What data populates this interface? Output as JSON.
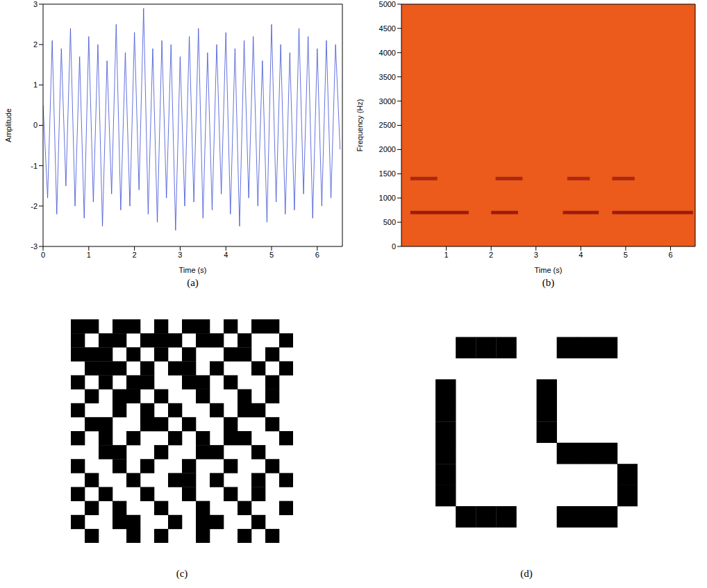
{
  "chart_data": [
    {
      "type": "line",
      "title": "(a)",
      "x_label": "Time (s)",
      "y_label": "Amplitude",
      "color": "#3c4fd4",
      "x": [
        0,
        0.1,
        0.2,
        0.3,
        0.4,
        0.5,
        0.6,
        0.7,
        0.8,
        0.9,
        1,
        1.1,
        1.2,
        1.3,
        1.4,
        1.5,
        1.6,
        1.7,
        1.8,
        1.9,
        2,
        2.1,
        2.2,
        2.3,
        2.4,
        2.5,
        2.6,
        2.7,
        2.8,
        2.9,
        3,
        3.1,
        3.2,
        3.3,
        3.4,
        3.5,
        3.6,
        3.7,
        3.8,
        3.9,
        4,
        4.1,
        4.2,
        4.3,
        4.4,
        4.5,
        4.6,
        4.7,
        4.8,
        4.9,
        5,
        5.1,
        5.2,
        5.3,
        5.4,
        5.5,
        5.6,
        5.7,
        5.8,
        5.9,
        6,
        6.1,
        6.2,
        6.3,
        6.4,
        6.5
      ],
      "values": [
        0.5,
        -1.8,
        2.1,
        -2.2,
        1.9,
        -1.5,
        2.4,
        -2.0,
        1.7,
        -2.3,
        2.2,
        -1.9,
        2.0,
        -2.5,
        1.6,
        -1.7,
        2.5,
        -2.1,
        1.8,
        -2.0,
        2.3,
        -1.6,
        2.9,
        -2.2,
        1.9,
        -2.4,
        2.1,
        -1.8,
        2.0,
        -2.6,
        1.7,
        -2.0,
        2.2,
        -1.9,
        2.4,
        -2.3,
        1.8,
        -2.1,
        2.0,
        -1.7,
        2.3,
        -2.2,
        1.9,
        -2.5,
        2.1,
        -1.8,
        2.2,
        -2.0,
        1.6,
        -2.4,
        2.5,
        -1.9,
        2.0,
        -2.2,
        1.8,
        -2.1,
        2.4,
        -1.7,
        2.2,
        -2.3,
        1.9,
        -2.0,
        2.1,
        -1.8,
        2.0,
        -0.6
      ],
      "xlim": [
        0,
        6.55
      ],
      "xticks": [
        0,
        1,
        2,
        3,
        4,
        5,
        6
      ],
      "ylim": [
        -3,
        3
      ],
      "yticks": [
        -3,
        -2,
        -1,
        0,
        1,
        2,
        3
      ],
      "grid": false
    },
    {
      "type": "spectrogram",
      "title": "(b)",
      "x_label": "Time (s)",
      "y_label": "Frequency (Hz)",
      "color": "#ec5a1c",
      "bands": [
        {
          "freq": 700,
          "start": 0.2,
          "end": 1.5,
          "color": "#8e1208"
        },
        {
          "freq": 700,
          "start": 2.0,
          "end": 2.6,
          "color": "#8e1208"
        },
        {
          "freq": 700,
          "start": 3.6,
          "end": 4.4,
          "color": "#8e1208"
        },
        {
          "freq": 700,
          "start": 4.7,
          "end": 6.5,
          "color": "#8e1208"
        },
        {
          "freq": 1400,
          "start": 0.2,
          "end": 0.8,
          "color": "#a0200c"
        },
        {
          "freq": 1400,
          "start": 2.1,
          "end": 2.7,
          "color": "#a0200c"
        },
        {
          "freq": 1400,
          "start": 3.7,
          "end": 4.2,
          "color": "#a0200c"
        },
        {
          "freq": 1400,
          "start": 4.7,
          "end": 5.2,
          "color": "#a0200c"
        }
      ],
      "xlim": [
        0,
        6.55
      ],
      "xticks": [
        1,
        2,
        3,
        4,
        5,
        6
      ],
      "ylim": [
        0,
        5000
      ],
      "yticks": [
        0,
        500,
        1000,
        1500,
        2000,
        2500,
        3000,
        3500,
        4000,
        4500,
        5000
      ],
      "grid": false
    },
    {
      "type": "image",
      "title": "(c)",
      "color": "#000000",
      "cells": [
        [
          1,
          1,
          0,
          1,
          1,
          0,
          1,
          0,
          1,
          1,
          0,
          1,
          0,
          1,
          1,
          0
        ],
        [
          1,
          0,
          1,
          1,
          0,
          1,
          1,
          1,
          0,
          1,
          1,
          0,
          1,
          0,
          0,
          1
        ],
        [
          1,
          1,
          1,
          0,
          1,
          0,
          1,
          0,
          1,
          0,
          0,
          1,
          1,
          0,
          1,
          0
        ],
        [
          0,
          1,
          1,
          1,
          0,
          1,
          0,
          1,
          1,
          0,
          1,
          0,
          0,
          1,
          0,
          1
        ],
        [
          1,
          0,
          1,
          0,
          1,
          1,
          0,
          0,
          1,
          1,
          0,
          1,
          0,
          0,
          1,
          0
        ],
        [
          0,
          1,
          0,
          1,
          1,
          0,
          1,
          0,
          0,
          1,
          0,
          0,
          1,
          0,
          1,
          0
        ],
        [
          1,
          0,
          0,
          1,
          0,
          1,
          0,
          1,
          0,
          0,
          1,
          0,
          1,
          1,
          0,
          0
        ],
        [
          0,
          1,
          1,
          0,
          0,
          1,
          1,
          0,
          1,
          0,
          0,
          1,
          0,
          0,
          1,
          0
        ],
        [
          1,
          0,
          1,
          0,
          1,
          0,
          0,
          1,
          0,
          1,
          0,
          1,
          1,
          0,
          0,
          1
        ],
        [
          0,
          0,
          1,
          1,
          0,
          0,
          1,
          0,
          0,
          1,
          1,
          0,
          0,
          1,
          0,
          0
        ],
        [
          1,
          0,
          0,
          1,
          0,
          1,
          0,
          0,
          1,
          0,
          0,
          1,
          0,
          0,
          1,
          0
        ],
        [
          0,
          1,
          0,
          0,
          1,
          0,
          0,
          1,
          1,
          0,
          1,
          0,
          0,
          1,
          0,
          1
        ],
        [
          1,
          0,
          1,
          0,
          0,
          1,
          0,
          0,
          1,
          0,
          0,
          1,
          0,
          1,
          0,
          0
        ],
        [
          0,
          1,
          0,
          1,
          0,
          0,
          1,
          0,
          0,
          1,
          0,
          0,
          1,
          0,
          0,
          1
        ],
        [
          1,
          0,
          0,
          1,
          1,
          0,
          0,
          1,
          0,
          1,
          1,
          0,
          0,
          1,
          0,
          0
        ],
        [
          0,
          1,
          0,
          0,
          1,
          0,
          1,
          0,
          0,
          1,
          0,
          0,
          1,
          0,
          1,
          0
        ]
      ]
    },
    {
      "type": "image",
      "title": "(d)",
      "color": "#000000",
      "cells": [
        [
          0,
          0,
          0,
          0,
          0,
          0,
          0,
          0,
          0,
          0,
          0
        ],
        [
          0,
          0,
          1,
          1,
          1,
          0,
          0,
          1,
          1,
          1,
          0
        ],
        [
          0,
          0,
          0,
          0,
          0,
          0,
          0,
          0,
          0,
          0,
          0
        ],
        [
          0,
          1,
          0,
          0,
          0,
          0,
          1,
          0,
          0,
          0,
          0
        ],
        [
          0,
          1,
          0,
          0,
          0,
          0,
          1,
          0,
          0,
          0,
          0
        ],
        [
          0,
          1,
          0,
          0,
          0,
          0,
          1,
          0,
          0,
          0,
          0
        ],
        [
          0,
          1,
          0,
          0,
          0,
          0,
          0,
          1,
          1,
          1,
          0
        ],
        [
          0,
          1,
          0,
          0,
          0,
          0,
          0,
          0,
          0,
          0,
          1
        ],
        [
          0,
          1,
          0,
          0,
          0,
          0,
          0,
          0,
          0,
          0,
          1
        ],
        [
          0,
          0,
          1,
          1,
          1,
          0,
          0,
          1,
          1,
          1,
          0
        ],
        [
          0,
          0,
          0,
          0,
          0,
          0,
          0,
          0,
          0,
          0,
          0
        ]
      ]
    }
  ]
}
